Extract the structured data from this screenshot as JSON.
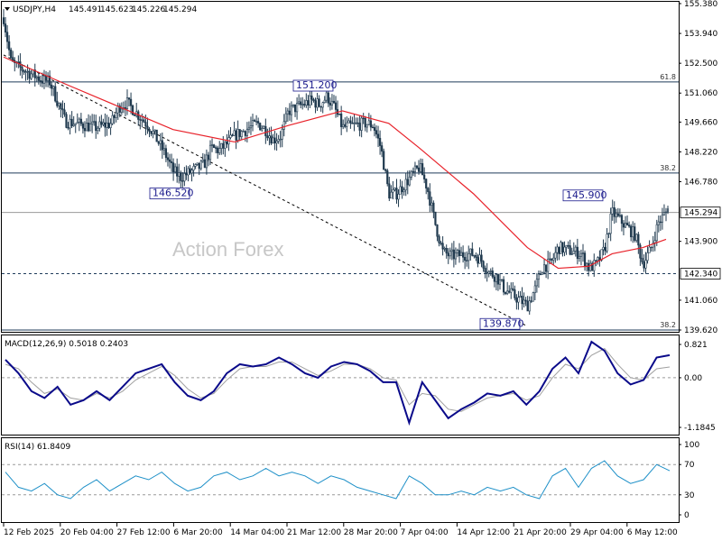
{
  "chart_data": [
    {
      "type": "candlestick",
      "symbol": "USDJPY,H4",
      "ohlc": {
        "open": 145.491,
        "high": 145.623,
        "low": 145.226,
        "close": 145.294
      },
      "ylim": [
        139.62,
        155.38
      ],
      "y_ticks": [
        "155.380",
        "153.940",
        "152.500",
        "151.060",
        "149.660",
        "148.220",
        "146.780",
        "145.294",
        "143.900",
        "142.340",
        "141.060",
        "139.620"
      ],
      "price_labels": [
        {
          "text": "151.200",
          "price": 151.2
        },
        {
          "text": "146.520",
          "price": 146.52
        },
        {
          "text": "139.870",
          "price": 139.87
        },
        {
          "text": "145.900",
          "price": 145.9
        }
      ],
      "current_price": {
        "text": "145.294",
        "value": 145.294
      },
      "horizontal_levels": [
        {
          "label": "61.8",
          "value": 151.6,
          "style": "solid"
        },
        {
          "label": "38.2",
          "value": 147.2,
          "style": "solid"
        },
        {
          "label": "",
          "value": 145.294,
          "style": "solid-gray"
        },
        {
          "label": "142.340",
          "value": 142.34,
          "style": "dashed"
        },
        {
          "label": "38.2",
          "value": 139.62,
          "style": "solid"
        }
      ],
      "trendline": {
        "from": {
          "date": "12 Feb 2025",
          "price": 152.9
        },
        "to": {
          "date": "21 Apr 2025",
          "price": 139.8
        },
        "style": "dashed"
      },
      "close_path": [
        [
          "12 Feb 2025",
          154.7
        ],
        [
          "13 Feb 2025",
          152.5
        ],
        [
          "17 Feb 2025",
          151.7
        ],
        [
          "18 Feb 2025",
          151.6
        ],
        [
          "20 Feb 2025",
          149.7
        ],
        [
          "24 Feb 2025",
          149.4
        ],
        [
          "26 Feb 2025",
          149.6
        ],
        [
          "27 Feb 2025",
          150.4
        ],
        [
          "28 Feb 2025",
          150.6
        ],
        [
          "3 Mar 2025",
          149.4
        ],
        [
          "5 Mar 2025",
          148.1
        ],
        [
          "6 Mar 2025",
          147.3
        ],
        [
          "7 Mar 2025",
          147.0
        ],
        [
          "10 Mar 2025",
          147.6
        ],
        [
          "11 Mar 2025",
          148.4
        ],
        [
          "12 Mar 2025",
          148.3
        ],
        [
          "13 Mar 2025",
          148.6
        ],
        [
          "14 Mar 2025",
          149.0
        ],
        [
          "17 Mar 2025",
          149.6
        ],
        [
          "18 Mar 2025",
          149.3
        ],
        [
          "19 Mar 2025",
          148.8
        ],
        [
          "20 Mar 2025",
          149.0
        ],
        [
          "21 Mar 2025",
          150.2
        ],
        [
          "24 Mar 2025",
          150.7
        ],
        [
          "25 Mar 2025",
          150.5
        ],
        [
          "26 Mar 2025",
          150.9
        ],
        [
          "27 Mar 2025",
          150.3
        ],
        [
          "28 Mar 2025",
          149.4
        ],
        [
          "31 Mar 2025",
          149.6
        ],
        [
          "1 Apr 2025",
          149.5
        ],
        [
          "2 Apr 2025",
          148.4
        ],
        [
          "3 Apr 2025",
          146.2
        ],
        [
          "4 Apr 2025",
          146.2
        ],
        [
          "7 Apr 2025",
          147.5
        ],
        [
          "8 Apr 2025",
          146.5
        ],
        [
          "9 Apr 2025",
          144.8
        ],
        [
          "10 Apr 2025",
          143.4
        ],
        [
          "11 Apr 2025",
          143.2
        ],
        [
          "14 Apr 2025",
          143.3
        ],
        [
          "15 Apr 2025",
          143.0
        ],
        [
          "16 Apr 2025",
          142.4
        ],
        [
          "17 Apr 2025",
          142.2
        ],
        [
          "18 Apr 2025",
          141.6
        ],
        [
          "21 Apr 2025",
          140.8
        ],
        [
          "22 Apr 2025",
          141.6
        ],
        [
          "23 Apr 2025",
          142.7
        ],
        [
          "24 Apr 2025",
          142.8
        ],
        [
          "25 Apr 2025",
          143.6
        ],
        [
          "28 Apr 2025",
          143.3
        ],
        [
          "29 Apr 2025",
          142.6
        ],
        [
          "30 Apr 2025",
          142.8
        ],
        [
          "1 May 2025",
          143.5
        ],
        [
          "2 May 2025",
          145.3
        ],
        [
          "5 May 2025",
          144.2
        ],
        [
          "6 May 2025",
          142.8
        ],
        [
          "7 May 2025",
          143.5
        ],
        [
          "8 May 2025",
          144.8
        ],
        [
          "9 May 2025",
          145.3
        ]
      ],
      "moving_average": [
        [
          "12 Feb 2025",
          152.8
        ],
        [
          "20 Feb 2025",
          151.5
        ],
        [
          "27 Feb 2025",
          150.4
        ],
        [
          "6 Mar 2025",
          149.3
        ],
        [
          "14 Mar 2025",
          148.7
        ],
        [
          "21 Mar 2025",
          149.5
        ],
        [
          "28 Mar 2025",
          150.2
        ],
        [
          "3 Apr 2025",
          149.6
        ],
        [
          "7 Apr 2025",
          148.4
        ],
        [
          "14 Apr 2025",
          146.2
        ],
        [
          "21 Apr 2025",
          143.6
        ],
        [
          "25 Apr 2025",
          142.6
        ],
        [
          "29 Apr 2025",
          142.7
        ],
        [
          "2 May 2025",
          143.3
        ],
        [
          "6 May 2025",
          143.6
        ],
        [
          "9 May 2025",
          144.0
        ]
      ],
      "x_ticks": [
        "12 Feb 2025",
        "20 Feb 04:00",
        "27 Feb 12:00",
        "6 Mar 20:00",
        "14 Mar 04:00",
        "21 Mar 12:00",
        "28 Mar 20:00",
        "7 Apr 04:00",
        "14 Apr 12:00",
        "21 Apr 20:00",
        "29 Apr 04:00",
        "6 May 12:00"
      ]
    },
    {
      "type": "line",
      "name": "MACD(12,26,9) 0.5018 0.2403",
      "ylim": [
        -1.1845,
        0.821
      ],
      "y_ticks": [
        "0.821",
        "0.00",
        "-1.1845"
      ],
      "series": [
        {
          "name": "MACD",
          "values": [
            0.4,
            0.1,
            -0.3,
            -0.45,
            -0.2,
            -0.6,
            -0.5,
            -0.3,
            -0.5,
            -0.2,
            0.1,
            0.2,
            0.3,
            -0.1,
            -0.4,
            -0.5,
            -0.3,
            0.1,
            0.3,
            0.25,
            0.3,
            0.45,
            0.3,
            0.1,
            0.0,
            0.25,
            0.35,
            0.3,
            0.15,
            -0.1,
            -0.1,
            -1.0,
            -0.1,
            -0.5,
            -0.9,
            -0.7,
            -0.55,
            -0.35,
            -0.4,
            -0.3,
            -0.6,
            -0.3,
            0.2,
            0.45,
            0.1,
            0.8,
            0.6,
            0.1,
            -0.15,
            -0.05,
            0.45,
            0.5018
          ]
        },
        {
          "name": "Signal",
          "values": [
            0.3,
            0.2,
            -0.1,
            -0.35,
            -0.25,
            -0.45,
            -0.5,
            -0.35,
            -0.45,
            -0.3,
            -0.05,
            0.1,
            0.25,
            0.05,
            -0.25,
            -0.45,
            -0.35,
            -0.05,
            0.2,
            0.25,
            0.25,
            0.35,
            0.35,
            0.2,
            0.05,
            0.15,
            0.3,
            0.3,
            0.2,
            0.0,
            -0.05,
            -0.6,
            -0.35,
            -0.4,
            -0.7,
            -0.75,
            -0.6,
            -0.45,
            -0.4,
            -0.35,
            -0.5,
            -0.4,
            0.0,
            0.3,
            0.2,
            0.5,
            0.65,
            0.3,
            0.0,
            -0.05,
            0.2,
            0.2403
          ]
        }
      ]
    },
    {
      "type": "line",
      "name": "RSI(14) 61.8409",
      "ylim": [
        0,
        100
      ],
      "y_ticks": [
        "100",
        "70",
        "30",
        "0"
      ],
      "levels": [
        70,
        30
      ],
      "series": [
        {
          "name": "RSI",
          "values": [
            60,
            40,
            35,
            45,
            30,
            25,
            40,
            50,
            35,
            45,
            55,
            50,
            60,
            45,
            35,
            40,
            55,
            60,
            50,
            55,
            65,
            55,
            60,
            55,
            45,
            55,
            50,
            40,
            35,
            30,
            25,
            55,
            45,
            30,
            30,
            35,
            30,
            40,
            35,
            40,
            30,
            25,
            55,
            65,
            40,
            65,
            75,
            55,
            45,
            50,
            70,
            61.84
          ]
        }
      ]
    }
  ],
  "header": {
    "symbol": "USDJPY,H4",
    "open": "145.491",
    "high": "145.623",
    "low": "145.226",
    "close": "145.294"
  },
  "watermark": "Action Forex"
}
